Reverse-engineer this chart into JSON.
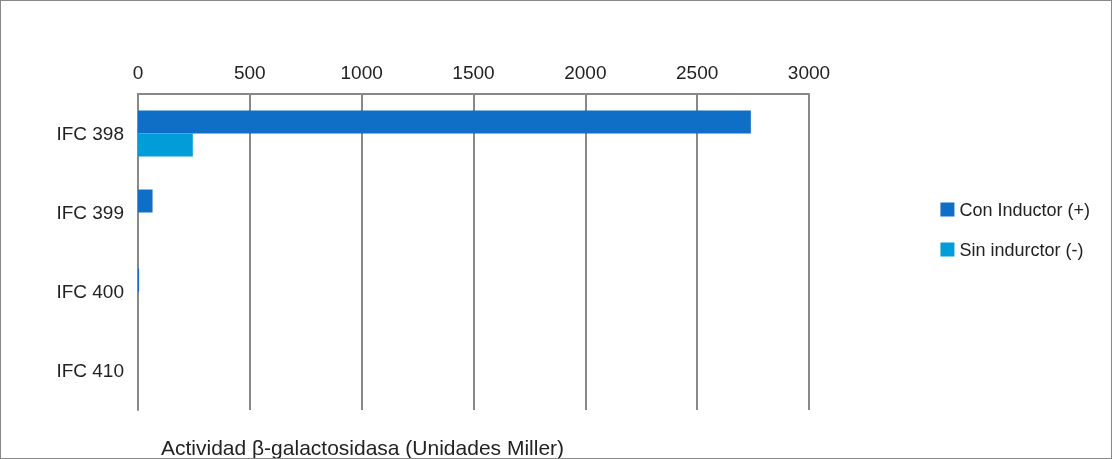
{
  "chart_data": {
    "type": "bar",
    "orientation": "horizontal",
    "xlabel": "Actividad β-galactosidasa (Unidades Miller)",
    "categories": [
      "IFC 398",
      "IFC 399",
      "IFC 400",
      "IFC 410"
    ],
    "series": [
      {
        "name": "Con Inductor (+)",
        "color": "#0f6fc6",
        "values": [
          2740,
          65,
          5,
          null
        ]
      },
      {
        "name": "Sin indurctor (-)",
        "color": "#009dd9",
        "values": [
          245,
          null,
          null,
          null
        ]
      }
    ],
    "xlim": [
      0,
      3000
    ],
    "xticks": [
      0,
      500,
      1000,
      1500,
      2000,
      2500,
      3000
    ],
    "grid": "x",
    "legend": "right"
  }
}
